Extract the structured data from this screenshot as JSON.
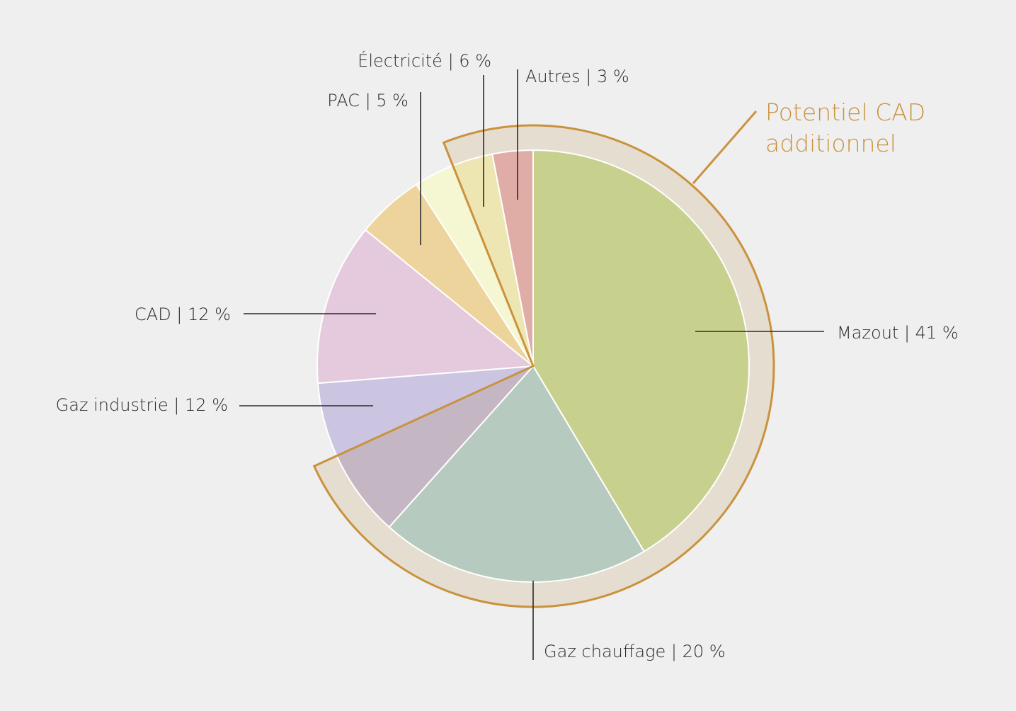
{
  "chart_data": {
    "type": "pie",
    "title": "",
    "slices": [
      {
        "label": "Mazout | 41 %",
        "value": 41,
        "color": "#c8d08e"
      },
      {
        "label": "Gaz chauffage | 20 %",
        "value": 20,
        "color": "#b7cabf"
      },
      {
        "label": "",
        "value": 6.5,
        "color": "#c5b6c4"
      },
      {
        "label": "Gaz industrie | 12 %",
        "value": 5.5,
        "color": "#cbc5e2"
      },
      {
        "label": "CAD | 12 %",
        "value": 12,
        "color": "#e4cadc"
      },
      {
        "label": "PAC | 5 %",
        "value": 5,
        "color": "#ecd49c"
      },
      {
        "label": "",
        "value": 3,
        "color": "#f5f7d2"
      },
      {
        "label": "Électricité | 6 %",
        "value": 3,
        "color": "#ede5b2"
      },
      {
        "label": "Autres | 3 %",
        "value": 3,
        "color": "#e0aca6"
      }
    ],
    "highlight": {
      "label_lines": [
        "Potentiel CAD",
        "additionnel"
      ],
      "fill": "#e5ddcf",
      "stroke": "#c9923e"
    },
    "legend": "none"
  }
}
